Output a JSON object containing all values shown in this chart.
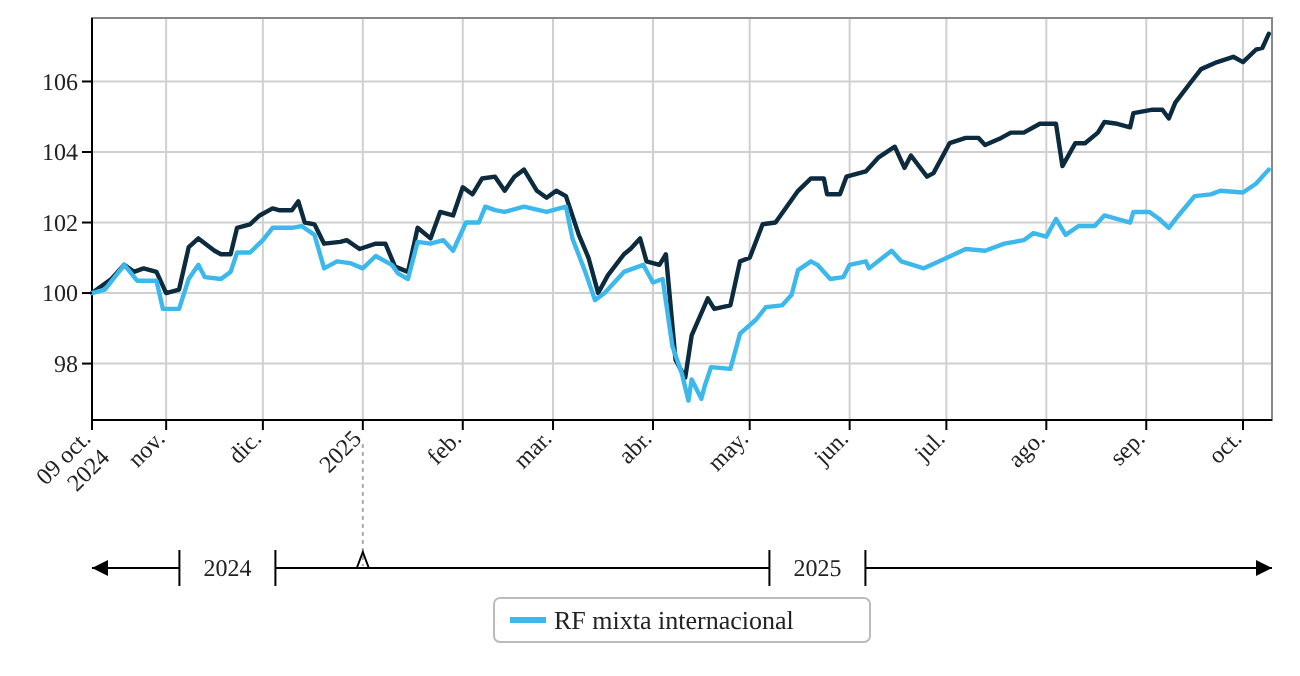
{
  "chart_data": {
    "type": "line",
    "xlim": [
      "2024-10-09",
      "2025-10-10"
    ],
    "ylim": [
      96.4,
      107.8
    ],
    "xticks": [
      {
        "value": "2024-10-09",
        "label": "09 oct.\n2024"
      },
      {
        "value": "2024-11-01",
        "label": "nov."
      },
      {
        "value": "2024-12-01",
        "label": "dic."
      },
      {
        "value": "2025-01-01",
        "label": "2025"
      },
      {
        "value": "2025-02-01",
        "label": "feb."
      },
      {
        "value": "2025-03-01",
        "label": "mar."
      },
      {
        "value": "2025-04-01",
        "label": "abr."
      },
      {
        "value": "2025-05-01",
        "label": "may."
      },
      {
        "value": "2025-06-01",
        "label": "jun."
      },
      {
        "value": "2025-07-01",
        "label": "jul."
      },
      {
        "value": "2025-08-01",
        "label": "ago."
      },
      {
        "value": "2025-09-01",
        "label": "sep."
      },
      {
        "value": "2025-10-01",
        "label": "oct."
      }
    ],
    "yticks": [
      98,
      100,
      102,
      104,
      106
    ],
    "grid": true,
    "legend": "bottom",
    "line_style": "solid",
    "marker": "none",
    "annotations": [
      "2024",
      "2025"
    ],
    "series": [
      {
        "color": "#0d2b3e",
        "x": [
          "2024-10-09",
          "2024-10-15",
          "2024-10-19",
          "2024-10-22",
          "2024-10-25",
          "2024-10-29",
          "2024-11-01",
          "2024-11-05",
          "2024-11-08",
          "2024-11-11",
          "2024-11-16",
          "2024-11-18",
          "2024-11-21",
          "2024-11-23",
          "2024-11-27",
          "2024-11-30",
          "2024-12-04",
          "2024-12-06",
          "2024-12-10",
          "2024-12-12",
          "2024-12-14",
          "2024-12-17",
          "2024-12-20",
          "2024-12-25",
          "2024-12-27",
          "2024-12-31",
          "2025-01-05",
          "2025-01-08",
          "2025-01-11",
          "2025-01-15",
          "2025-01-18",
          "2025-01-22",
          "2025-01-25",
          "2025-01-29",
          "2025-02-01",
          "2025-02-04",
          "2025-02-07",
          "2025-02-11",
          "2025-02-14",
          "2025-02-17",
          "2025-02-20",
          "2025-02-24",
          "2025-02-27",
          "2025-03-02",
          "2025-03-05",
          "2025-03-09",
          "2025-03-12",
          "2025-03-15",
          "2025-03-18",
          "2025-03-23",
          "2025-03-25",
          "2025-03-28",
          "2025-03-30",
          "2025-04-03",
          "2025-04-05",
          "2025-04-08",
          "2025-04-11",
          "2025-04-13",
          "2025-04-18",
          "2025-04-20",
          "2025-04-25",
          "2025-04-28",
          "2025-05-01",
          "2025-05-05",
          "2025-05-09",
          "2025-05-16",
          "2025-05-20",
          "2025-05-24",
          "2025-05-25",
          "2025-05-29",
          "2025-05-31",
          "2025-06-06",
          "2025-06-10",
          "2025-06-15",
          "2025-06-18",
          "2025-06-20",
          "2025-06-25",
          "2025-06-27",
          "2025-07-02",
          "2025-07-07",
          "2025-07-11",
          "2025-07-13",
          "2025-07-18",
          "2025-07-21",
          "2025-07-25",
          "2025-07-30",
          "2025-08-04",
          "2025-08-06",
          "2025-08-10",
          "2025-08-13",
          "2025-08-17",
          "2025-08-19",
          "2025-08-23",
          "2025-08-27",
          "2025-08-28",
          "2025-09-03",
          "2025-09-06",
          "2025-09-08",
          "2025-09-10",
          "2025-09-15",
          "2025-09-18",
          "2025-09-23",
          "2025-09-28",
          "2025-10-01",
          "2025-10-05",
          "2025-10-07",
          "2025-10-09"
        ],
        "values": [
          100.0,
          100.4,
          100.8,
          100.6,
          100.7,
          100.6,
          100.0,
          100.1,
          101.3,
          101.55,
          101.2,
          101.1,
          101.1,
          101.85,
          101.95,
          102.2,
          102.4,
          102.35,
          102.35,
          102.6,
          102.0,
          101.95,
          101.4,
          101.45,
          101.5,
          101.25,
          101.4,
          101.4,
          100.75,
          100.6,
          101.85,
          101.55,
          102.3,
          102.2,
          103.0,
          102.8,
          103.25,
          103.3,
          102.9,
          103.3,
          103.5,
          102.9,
          102.7,
          102.9,
          102.75,
          101.65,
          101.0,
          100.0,
          100.5,
          101.1,
          101.25,
          101.55,
          100.9,
          100.8,
          101.1,
          98.1,
          97.6,
          98.8,
          99.85,
          99.55,
          99.65,
          100.9,
          101.0,
          101.95,
          102.0,
          102.9,
          103.25,
          103.25,
          102.8,
          102.8,
          103.3,
          103.45,
          103.85,
          104.15,
          103.55,
          103.9,
          103.3,
          103.4,
          104.25,
          104.4,
          104.4,
          104.2,
          104.4,
          104.55,
          104.55,
          104.8,
          104.8,
          103.6,
          104.25,
          104.25,
          104.55,
          104.85,
          104.8,
          104.7,
          105.1,
          105.2,
          105.2,
          104.95,
          105.4,
          106.0,
          106.35,
          106.55,
          106.7,
          106.55,
          106.9,
          106.95,
          107.35
        ]
      },
      {
        "name": "RF mixta internacional",
        "color": "#3cb8ec",
        "x": [
          "2024-10-09",
          "2024-10-13",
          "2024-10-19",
          "2024-10-23",
          "2024-10-29",
          "2024-10-31",
          "2024-11-05",
          "2024-11-08",
          "2024-11-11",
          "2024-11-13",
          "2024-11-18",
          "2024-11-21",
          "2024-11-23",
          "2024-11-27",
          "2024-12-01",
          "2024-12-04",
          "2024-12-10",
          "2024-12-13",
          "2024-12-17",
          "2024-12-20",
          "2024-12-24",
          "2024-12-28",
          "2025-01-01",
          "2025-01-05",
          "2025-01-10",
          "2025-01-12",
          "2025-01-15",
          "2025-01-18",
          "2025-01-22",
          "2025-01-26",
          "2025-01-29",
          "2025-02-02",
          "2025-02-06",
          "2025-02-08",
          "2025-02-11",
          "2025-02-14",
          "2025-02-20",
          "2025-02-27",
          "2025-03-05",
          "2025-03-07",
          "2025-03-11",
          "2025-03-14",
          "2025-03-17",
          "2025-03-23",
          "2025-03-29",
          "2025-04-01",
          "2025-04-04",
          "2025-04-07",
          "2025-04-10",
          "2025-04-12",
          "2025-04-13",
          "2025-04-16",
          "2025-04-17",
          "2025-04-19",
          "2025-04-25",
          "2025-04-28",
          "2025-05-03",
          "2025-05-06",
          "2025-05-11",
          "2025-05-14",
          "2025-05-16",
          "2025-05-20",
          "2025-05-22",
          "2025-05-26",
          "2025-05-30",
          "2025-06-01",
          "2025-06-06",
          "2025-06-07",
          "2025-06-14",
          "2025-06-17",
          "2025-06-24",
          "2025-06-30",
          "2025-07-07",
          "2025-07-13",
          "2025-07-19",
          "2025-07-25",
          "2025-07-28",
          "2025-08-01",
          "2025-08-04",
          "2025-08-07",
          "2025-08-11",
          "2025-08-16",
          "2025-08-19",
          "2025-08-27",
          "2025-08-28",
          "2025-09-02",
          "2025-09-05",
          "2025-09-08",
          "2025-09-11",
          "2025-09-16",
          "2025-09-21",
          "2025-09-24",
          "2025-10-01",
          "2025-10-05",
          "2025-10-09"
        ],
        "values": [
          100.0,
          100.1,
          100.8,
          100.35,
          100.35,
          99.55,
          99.55,
          100.4,
          100.8,
          100.45,
          100.4,
          100.6,
          101.15,
          101.15,
          101.5,
          101.85,
          101.85,
          101.9,
          101.65,
          100.7,
          100.9,
          100.85,
          100.7,
          101.05,
          100.8,
          100.55,
          100.4,
          101.45,
          101.4,
          101.5,
          101.2,
          102.0,
          102.0,
          102.45,
          102.35,
          102.3,
          102.45,
          102.3,
          102.45,
          101.55,
          100.6,
          99.8,
          100.0,
          100.6,
          100.8,
          100.3,
          100.4,
          98.5,
          97.7,
          96.95,
          97.55,
          97.0,
          97.35,
          97.9,
          97.85,
          98.85,
          99.25,
          99.6,
          99.65,
          99.95,
          100.65,
          100.9,
          100.8,
          100.4,
          100.45,
          100.8,
          100.9,
          100.7,
          101.2,
          100.9,
          100.7,
          100.95,
          101.25,
          101.2,
          101.4,
          101.5,
          101.7,
          101.6,
          102.1,
          101.65,
          101.9,
          101.9,
          102.2,
          102.0,
          102.3,
          102.3,
          102.1,
          101.85,
          102.2,
          102.75,
          102.8,
          102.9,
          102.85,
          103.1,
          103.5
        ]
      }
    ]
  }
}
